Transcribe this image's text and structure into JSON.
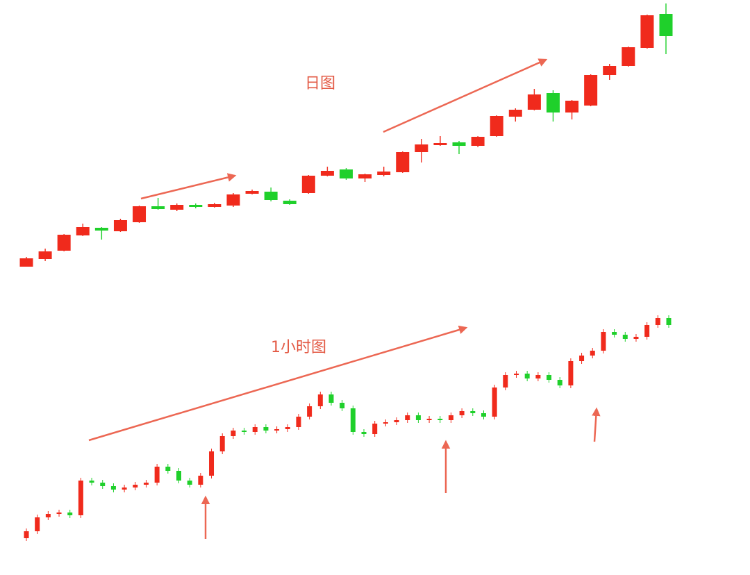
{
  "chart_data": [
    {
      "type": "candlestick",
      "title": "日图",
      "up_color": "#f02a1c",
      "down_color": "#1fd02b",
      "ylim": [
        0,
        828
      ],
      "open": [
        444,
        455,
        467,
        489,
        500,
        495,
        508,
        531,
        526,
        533,
        530,
        532,
        549,
        552,
        539,
        550,
        575,
        584,
        571,
        576,
        580,
        609,
        619,
        623,
        618,
        632,
        660,
        670,
        694,
        666,
        676,
        720,
        733,
        759,
        808
      ],
      "high": [
        458,
        470,
        491,
        506,
        501,
        513,
        532,
        543,
        535,
        535,
        536,
        550,
        555,
        558,
        541,
        576,
        588,
        586,
        578,
        588,
        610,
        628,
        632,
        625,
        632,
        662,
        672,
        700,
        698,
        684,
        721,
        736,
        761,
        807,
        823
      ],
      "low": [
        444,
        452,
        466,
        488,
        483,
        494,
        507,
        526,
        524,
        528,
        529,
        530,
        548,
        538,
        533,
        549,
        574,
        569,
        566,
        574,
        579,
        594,
        618,
        606,
        616,
        631,
        653,
        669,
        653,
        656,
        675,
        713,
        732,
        758,
        750
      ],
      "close": [
        456,
        466,
        490,
        501,
        496,
        511,
        531,
        527,
        533,
        530,
        534,
        548,
        553,
        540,
        534,
        575,
        582,
        571,
        577,
        581,
        609,
        620,
        622,
        618,
        631,
        661,
        670,
        692,
        666,
        683,
        720,
        733,
        760,
        806,
        776
      ]
    },
    {
      "type": "candlestick",
      "title": "1小时图",
      "up_color": "#f02a1c",
      "down_color": "#1fd02b",
      "ylim": [
        0,
        828
      ],
      "open": [
        53,
        63,
        83,
        88,
        90,
        86,
        136,
        133,
        128,
        123,
        126,
        130,
        133,
        156,
        150,
        136,
        130,
        143,
        178,
        200,
        208,
        206,
        213,
        208,
        210,
        213,
        228,
        243,
        260,
        248,
        240,
        206,
        203,
        218,
        220,
        223,
        230,
        223,
        225,
        223,
        230,
        236,
        233,
        228,
        270,
        288,
        290,
        283,
        288,
        281,
        273,
        308,
        316,
        323,
        350,
        346,
        340,
        343,
        360,
        370
      ],
      "high": [
        67,
        87,
        92,
        94,
        94,
        140,
        140,
        137,
        132,
        130,
        134,
        137,
        160,
        160,
        154,
        140,
        147,
        182,
        204,
        212,
        212,
        217,
        217,
        214,
        217,
        232,
        247,
        264,
        264,
        252,
        244,
        210,
        222,
        224,
        227,
        234,
        234,
        229,
        229,
        234,
        240,
        240,
        237,
        274,
        292,
        294,
        294,
        292,
        292,
        285,
        312,
        320,
        327,
        354,
        354,
        350,
        347,
        364,
        374,
        374
      ],
      "low": [
        49,
        59,
        79,
        84,
        82,
        82,
        129,
        124,
        119,
        119,
        122,
        126,
        129,
        146,
        132,
        126,
        126,
        139,
        174,
        196,
        202,
        202,
        204,
        204,
        206,
        209,
        224,
        239,
        244,
        236,
        202,
        199,
        199,
        214,
        216,
        219,
        219,
        219,
        219,
        219,
        226,
        229,
        224,
        224,
        266,
        284,
        279,
        279,
        277,
        269,
        269,
        304,
        312,
        319,
        342,
        336,
        336,
        339,
        356,
        356
      ],
      "close": [
        63,
        83,
        88,
        90,
        86,
        136,
        133,
        128,
        123,
        126,
        130,
        133,
        156,
        150,
        136,
        130,
        143,
        178,
        200,
        208,
        206,
        213,
        208,
        210,
        213,
        228,
        243,
        260,
        248,
        240,
        206,
        203,
        218,
        220,
        223,
        230,
        223,
        225,
        223,
        230,
        236,
        233,
        228,
        270,
        288,
        290,
        283,
        288,
        281,
        273,
        308,
        316,
        323,
        350,
        346,
        340,
        343,
        360,
        370,
        360
      ]
    }
  ]
}
